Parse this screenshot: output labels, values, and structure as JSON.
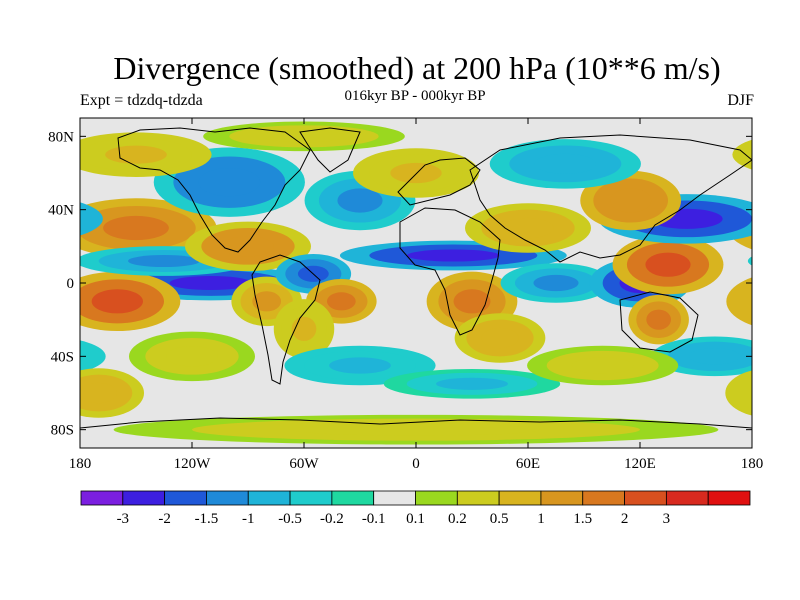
{
  "title": "Divergence (smoothed) at 200 hPa (10**6 m/s)",
  "experiment": "Expt = tdzdq-tdzda",
  "subtitle": "016kyr BP - 000kyr BP",
  "season": "DJF",
  "chart_data": {
    "type": "heatmap",
    "variable": "Divergence (smoothed) at 200 hPa",
    "units": "10**6 m/s",
    "x_ticks": [
      "180",
      "120W",
      "60W",
      "0",
      "60E",
      "120E",
      "180"
    ],
    "y_ticks": [
      "80N",
      "40N",
      "0",
      "40S",
      "80S"
    ],
    "x_range": [
      -180,
      180
    ],
    "y_range": [
      -90,
      90
    ],
    "colorbar": {
      "colors": [
        "#7b1fe0",
        "#3d1fe0",
        "#1f58d8",
        "#1f8ad8",
        "#1fb4d8",
        "#1fcccc",
        "#1fd8a0",
        "#e6e6e6",
        "#9ad81f",
        "#cccc1f",
        "#d8b41f",
        "#d8961f",
        "#d8781f",
        "#d8501f",
        "#d82a1f",
        "#e01010"
      ],
      "labels": [
        "-3",
        "-2",
        "-1.5",
        "-1",
        "-0.5",
        "-0.2",
        "-0.1",
        "0.1",
        "0.2",
        "0.5",
        "1",
        "1.5",
        "2",
        "3"
      ]
    },
    "regions": [
      {
        "lon": -150,
        "lat": 30,
        "rx": 32,
        "ry": 12,
        "value": 1.8
      },
      {
        "lon": -110,
        "lat": 0,
        "rx": 40,
        "ry": 7,
        "value": -2.6
      },
      {
        "lon": -160,
        "lat": -10,
        "rx": 25,
        "ry": 12,
        "value": 2.2
      },
      {
        "lon": -135,
        "lat": 12,
        "rx": 35,
        "ry": 6,
        "value": -1.2
      },
      {
        "lon": -90,
        "lat": 20,
        "rx": 25,
        "ry": 10,
        "value": 1.4
      },
      {
        "lon": -80,
        "lat": -10,
        "rx": 14,
        "ry": 10,
        "value": 1.3
      },
      {
        "lon": -55,
        "lat": 5,
        "rx": 15,
        "ry": 8,
        "value": -1.6
      },
      {
        "lon": -40,
        "lat": -10,
        "rx": 14,
        "ry": 9,
        "value": 1.6
      },
      {
        "lon": -60,
        "lat": -25,
        "rx": 12,
        "ry": 12,
        "value": 0.6
      },
      {
        "lon": -30,
        "lat": 45,
        "rx": 22,
        "ry": 12,
        "value": -1.0
      },
      {
        "lon": -100,
        "lat": 55,
        "rx": 30,
        "ry": 14,
        "value": -1.4
      },
      {
        "lon": -150,
        "lat": 70,
        "rx": 30,
        "ry": 9,
        "value": 0.6
      },
      {
        "lon": 20,
        "lat": 15,
        "rx": 45,
        "ry": 6,
        "value": -2.2
      },
      {
        "lon": 30,
        "lat": -10,
        "rx": 18,
        "ry": 12,
        "value": 1.8
      },
      {
        "lon": 45,
        "lat": -30,
        "rx": 18,
        "ry": 10,
        "value": 0.8
      },
      {
        "lon": 60,
        "lat": 30,
        "rx": 25,
        "ry": 10,
        "value": 0.7
      },
      {
        "lon": 75,
        "lat": 0,
        "rx": 22,
        "ry": 8,
        "value": -1.3
      },
      {
        "lon": 120,
        "lat": 0,
        "rx": 20,
        "ry": 10,
        "value": -2.6
      },
      {
        "lon": 135,
        "lat": 10,
        "rx": 22,
        "ry": 12,
        "value": 2.4
      },
      {
        "lon": 130,
        "lat": -20,
        "rx": 12,
        "ry": 10,
        "value": 2.0
      },
      {
        "lon": 145,
        "lat": 35,
        "rx": 35,
        "ry": 10,
        "value": -2.1
      },
      {
        "lon": 115,
        "lat": 45,
        "rx": 20,
        "ry": 12,
        "value": 1.5
      },
      {
        "lon": 160,
        "lat": -40,
        "rx": 25,
        "ry": 8,
        "value": -0.8
      },
      {
        "lon": -30,
        "lat": -45,
        "rx": 30,
        "ry": 8,
        "value": -0.6
      },
      {
        "lon": 30,
        "lat": -55,
        "rx": 35,
        "ry": 6,
        "value": -0.5
      },
      {
        "lon": 0,
        "lat": 60,
        "rx": 25,
        "ry": 10,
        "value": 0.6
      },
      {
        "lon": 80,
        "lat": 65,
        "rx": 30,
        "ry": 10,
        "value": -0.7
      },
      {
        "lon": -120,
        "lat": -40,
        "rx": 25,
        "ry": 10,
        "value": 0.5
      },
      {
        "lon": 100,
        "lat": -45,
        "rx": 30,
        "ry": 8,
        "value": 0.4
      },
      {
        "lon": 0,
        "lat": -80,
        "rx": 120,
        "ry": 6,
        "value": 0.5
      },
      {
        "lon": -60,
        "lat": 80,
        "rx": 40,
        "ry": 6,
        "value": 0.4
      },
      {
        "lon": -170,
        "lat": -60,
        "rx": 18,
        "ry": 10,
        "value": 0.7
      }
    ]
  }
}
